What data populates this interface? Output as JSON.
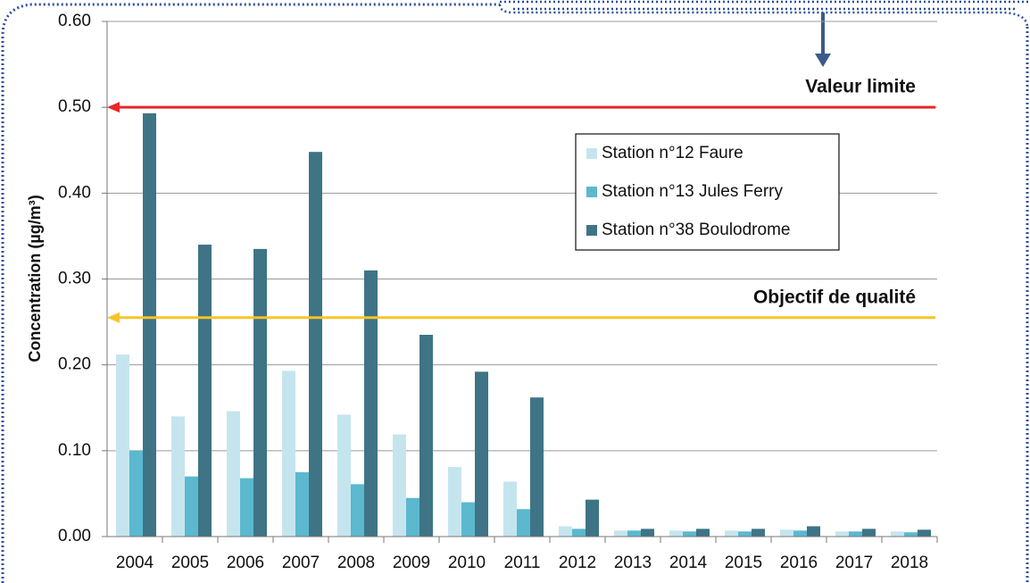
{
  "chart_data": {
    "type": "bar",
    "ylabel": "Concentration  (µg/m³)",
    "categories": [
      "2004",
      "2005",
      "2006",
      "2007",
      "2008",
      "2009",
      "2010",
      "2011",
      "2012",
      "2013",
      "2014",
      "2015",
      "2016",
      "2017",
      "2018"
    ],
    "series": [
      {
        "name": "Station n°12 Faure",
        "color": "#c5e5ee",
        "values": [
          0.212,
          0.14,
          0.146,
          0.193,
          0.142,
          0.119,
          0.081,
          0.064,
          0.012,
          0.007,
          0.007,
          0.007,
          0.008,
          0.006,
          0.006
        ]
      },
      {
        "name": "Station n°13 Jules Ferry",
        "color": "#5bb8cf",
        "values": [
          0.1,
          0.07,
          0.068,
          0.075,
          0.061,
          0.045,
          0.04,
          0.032,
          0.009,
          0.007,
          0.006,
          0.006,
          0.007,
          0.006,
          0.005
        ]
      },
      {
        "name": "Station n°38 Boulodrome",
        "color": "#3e7485",
        "values": [
          0.493,
          0.34,
          0.335,
          0.448,
          0.31,
          0.235,
          0.192,
          0.162,
          0.043,
          0.009,
          0.009,
          0.009,
          0.012,
          0.009,
          0.008
        ]
      }
    ],
    "reference_lines": [
      {
        "label": "Valeur limite",
        "value": 0.5,
        "color": "#e8262b"
      },
      {
        "label": "Objectif de qualité",
        "value": 0.255,
        "color": "#f7c42a"
      }
    ],
    "ylim": [
      0,
      0.6
    ],
    "yticks": [
      {
        "value": 0,
        "label": "0.00"
      },
      {
        "value": 0.1,
        "label": "0.10"
      },
      {
        "value": 0.2,
        "label": "0.20"
      },
      {
        "value": 0.3,
        "label": "0.30"
      },
      {
        "value": 0.4,
        "label": "0.40"
      },
      {
        "value": 0.5,
        "label": "0.50"
      },
      {
        "value": 0.6,
        "label": "0.60"
      }
    ],
    "grid": true
  }
}
